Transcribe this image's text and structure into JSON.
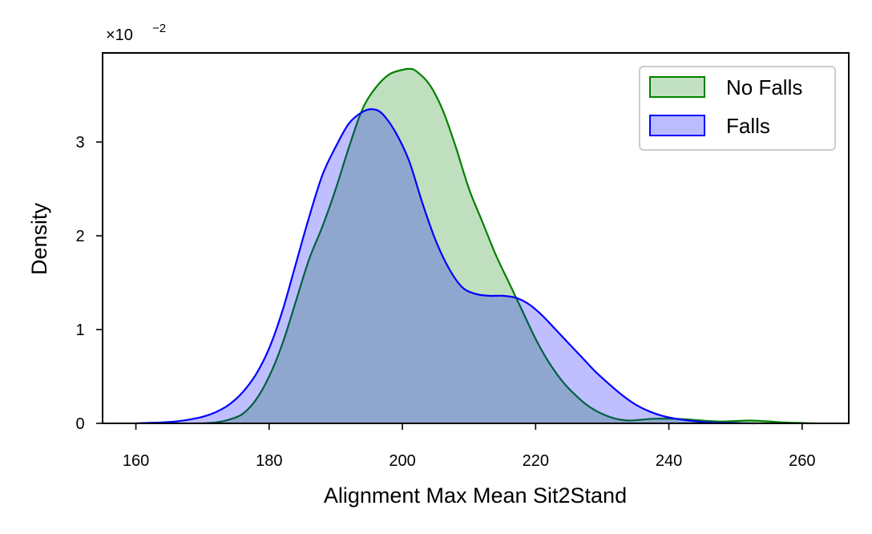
{
  "chart_data": {
    "type": "area",
    "xlabel": "Alignment Max Mean Sit2Stand",
    "ylabel": "Density",
    "y_scale_label": "×10",
    "y_scale_exponent": "−2",
    "xlim": [
      155,
      267
    ],
    "ylim": [
      0,
      3.95
    ],
    "xticks": [
      160,
      180,
      200,
      220,
      240,
      260
    ],
    "yticks": [
      0,
      1,
      2,
      3
    ],
    "grid": false,
    "legend_position": "top-right",
    "series": [
      {
        "name": "No Falls",
        "color": "#008000",
        "fill": "#c2e0c2",
        "x": [
          170,
          172,
          174,
          176,
          178,
          180,
          182,
          184,
          186,
          188,
          190,
          192,
          194,
          196,
          198,
          200,
          201,
          202,
          204,
          206,
          208,
          210,
          212,
          214,
          216,
          218,
          220,
          222,
          224,
          226,
          228,
          230,
          232,
          234,
          236,
          238,
          240,
          242,
          244,
          246,
          248,
          250,
          252,
          254,
          256,
          258,
          260,
          262
        ],
        "y": [
          0.0,
          0.01,
          0.04,
          0.1,
          0.25,
          0.5,
          0.85,
          1.3,
          1.75,
          2.1,
          2.5,
          2.95,
          3.35,
          3.58,
          3.72,
          3.77,
          3.78,
          3.76,
          3.62,
          3.35,
          2.95,
          2.5,
          2.15,
          1.8,
          1.5,
          1.2,
          0.9,
          0.65,
          0.45,
          0.3,
          0.18,
          0.1,
          0.05,
          0.03,
          0.04,
          0.05,
          0.05,
          0.045,
          0.035,
          0.025,
          0.02,
          0.025,
          0.03,
          0.025,
          0.015,
          0.008,
          0.004,
          0.0
        ]
      },
      {
        "name": "Falls",
        "color": "#0000ff",
        "fill": "#bbbbff",
        "x": [
          160,
          162,
          164,
          166,
          168,
          170,
          172,
          174,
          176,
          178,
          180,
          182,
          184,
          186,
          188,
          190,
          192,
          194,
          195.5,
          197,
          199,
          201,
          203,
          205,
          207,
          209,
          211,
          213,
          215,
          217,
          219,
          221,
          223,
          225,
          227,
          229,
          231,
          233,
          235,
          237,
          239,
          241,
          243,
          245,
          247,
          249,
          251,
          253
        ],
        "y": [
          0.0,
          0.005,
          0.01,
          0.02,
          0.04,
          0.07,
          0.12,
          0.2,
          0.33,
          0.52,
          0.8,
          1.2,
          1.7,
          2.2,
          2.65,
          2.95,
          3.2,
          3.32,
          3.35,
          3.3,
          3.1,
          2.8,
          2.35,
          1.95,
          1.65,
          1.45,
          1.38,
          1.36,
          1.36,
          1.34,
          1.27,
          1.15,
          1.0,
          0.85,
          0.7,
          0.55,
          0.42,
          0.3,
          0.2,
          0.13,
          0.08,
          0.05,
          0.03,
          0.015,
          0.008,
          0.004,
          0.002,
          0.0
        ]
      }
    ]
  }
}
